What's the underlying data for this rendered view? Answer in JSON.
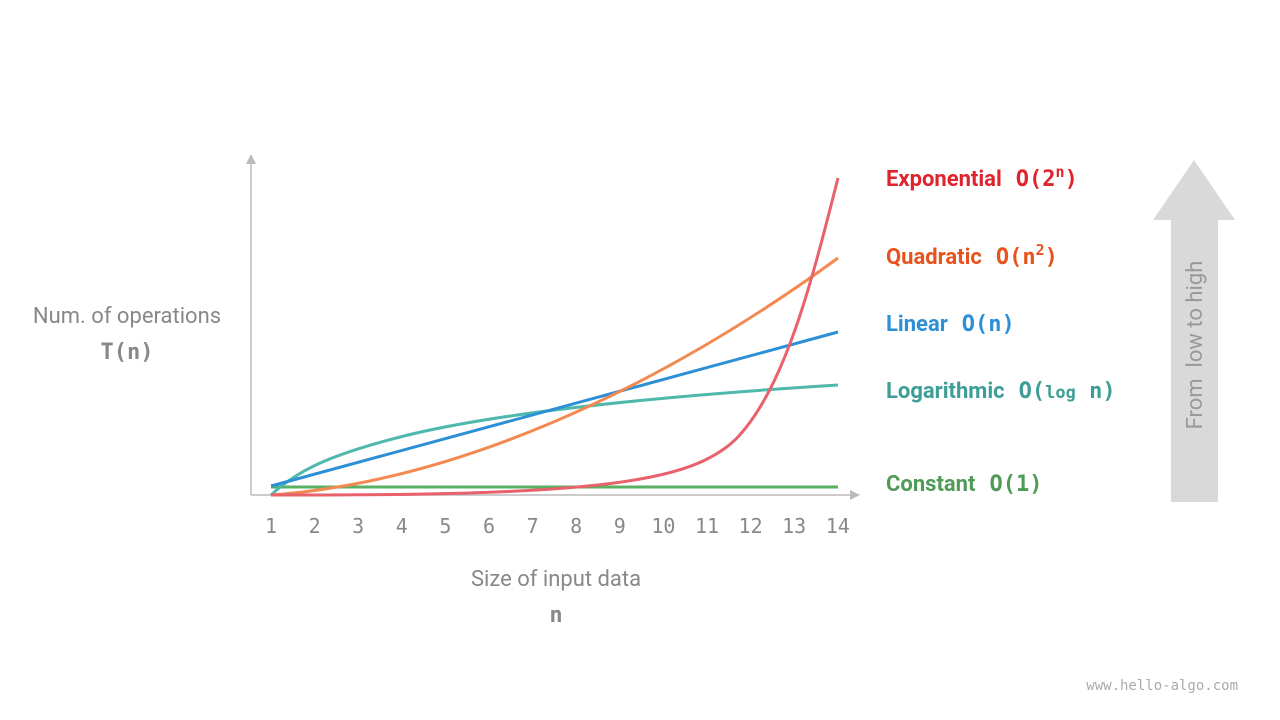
{
  "y_axis": {
    "label": "Num. of operations",
    "symbol": "T(n)"
  },
  "x_axis": {
    "label": "Size of input data",
    "symbol": "n",
    "ticks": [
      1,
      2,
      3,
      4,
      5,
      6,
      7,
      8,
      9,
      10,
      11,
      12,
      13,
      14
    ]
  },
  "curves": [
    {
      "name": "Exponential",
      "formula": [
        "O(2",
        "n",
        ")"
      ]
    },
    {
      "name": "Quadratic",
      "formula": [
        "O(n",
        "2",
        ")"
      ]
    },
    {
      "name": "Linear",
      "formula": [
        "O(n)"
      ]
    },
    {
      "name": "Logarithmic",
      "formula": [
        "O(",
        "log",
        " n)"
      ]
    },
    {
      "name": "Constant",
      "formula": [
        "O(1)"
      ]
    }
  ],
  "arrow_label": "From  low to high",
  "footer": "www.hello-algo.com"
}
